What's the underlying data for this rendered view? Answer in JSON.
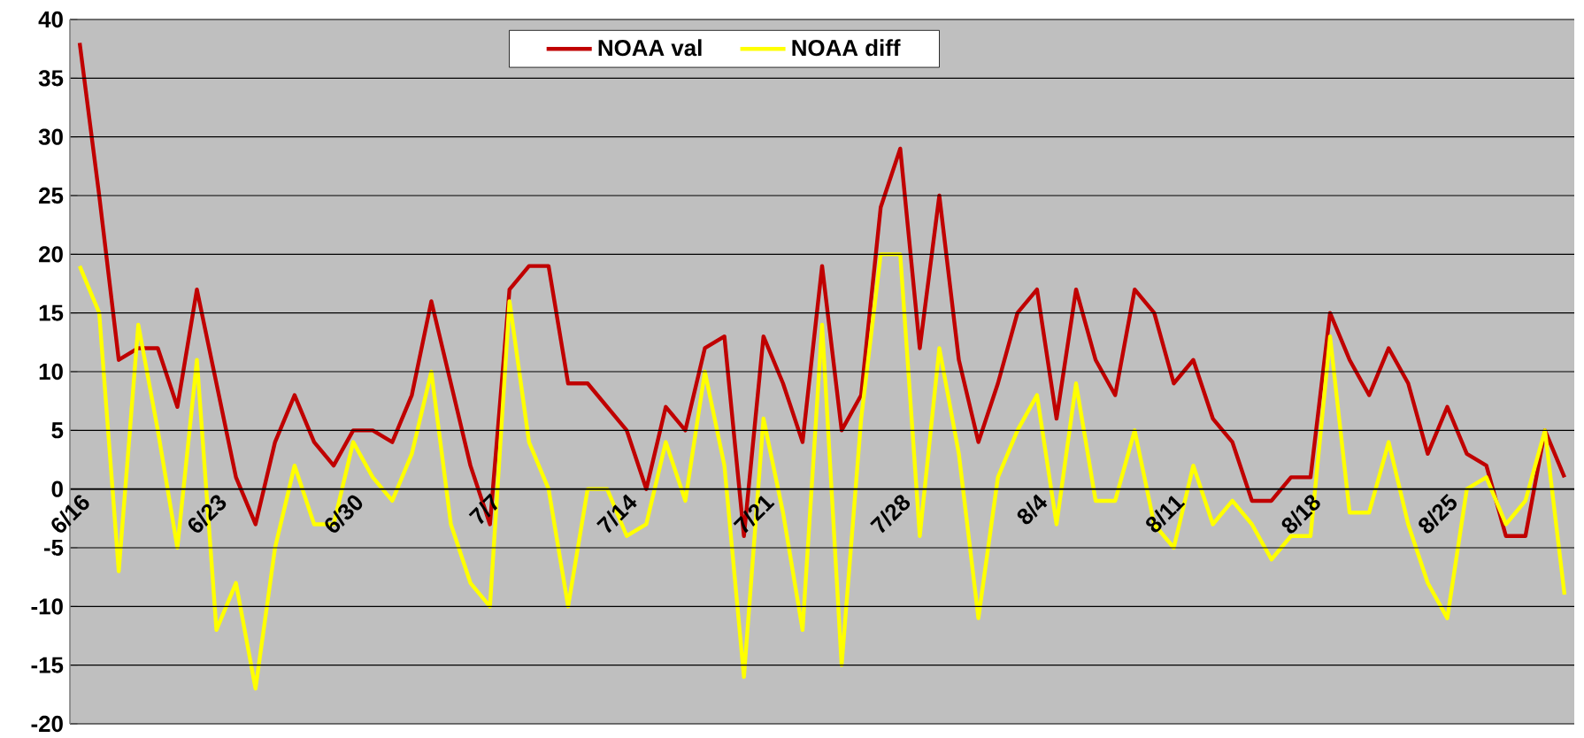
{
  "chart_data": {
    "type": "line",
    "categories": [
      "6/16",
      null,
      null,
      null,
      null,
      null,
      null,
      "6/23",
      null,
      null,
      null,
      null,
      null,
      null,
      "6/30",
      null,
      null,
      null,
      null,
      null,
      null,
      "7/7",
      null,
      null,
      null,
      null,
      null,
      null,
      "7/14",
      null,
      null,
      null,
      null,
      null,
      null,
      "7/21",
      null,
      null,
      null,
      null,
      null,
      null,
      "7/28",
      null,
      null,
      null,
      null,
      null,
      null,
      "8/4",
      null,
      null,
      null,
      null,
      null,
      null,
      "8/11",
      null,
      null,
      null,
      null,
      null,
      null,
      "8/18",
      null,
      null,
      null,
      null,
      null,
      null,
      "8/25",
      null,
      null,
      null,
      null,
      null,
      null
    ],
    "series": [
      {
        "name": "NOAA val",
        "color": "#c00000",
        "values": [
          38,
          25,
          11,
          12,
          12,
          7,
          17,
          9,
          1,
          -3,
          4,
          8,
          4,
          2,
          5,
          5,
          4,
          8,
          16,
          9,
          2,
          -3,
          17,
          19,
          19,
          9,
          9,
          7,
          5,
          0,
          7,
          5,
          12,
          13,
          -4,
          13,
          9,
          4,
          19,
          5,
          8,
          24,
          29,
          12,
          25,
          11,
          4,
          9,
          15,
          17,
          6,
          17,
          11,
          8,
          17,
          15,
          9,
          11,
          6,
          4,
          -1,
          -1,
          1,
          1,
          15,
          11,
          8,
          12,
          9,
          3,
          7,
          3,
          2,
          -4,
          -4,
          5,
          1
        ]
      },
      {
        "name": "NOAA diff",
        "color": "#ffff00",
        "values": [
          19,
          15,
          -7,
          14,
          5,
          -5,
          11,
          -12,
          -8,
          -17,
          -5,
          2,
          -3,
          -3,
          4,
          1,
          -1,
          3,
          10,
          -3,
          -8,
          -10,
          16,
          4,
          0,
          -10,
          0,
          0,
          -4,
          -3,
          4,
          -1,
          10,
          2,
          -16,
          6,
          -2,
          -12,
          14,
          -15,
          6,
          20,
          20,
          -4,
          12,
          3,
          -11,
          1,
          5,
          8,
          -3,
          9,
          -1,
          -1,
          5,
          -3,
          -5,
          2,
          -3,
          -1,
          -3,
          -6,
          -4,
          -4,
          13,
          -2,
          -2,
          4,
          -3,
          -8,
          -11,
          0,
          1,
          -3,
          -1,
          5,
          -9
        ]
      }
    ],
    "ylim": [
      -20,
      40
    ],
    "yticks": [
      -20,
      -15,
      -10,
      -5,
      0,
      5,
      10,
      15,
      20,
      25,
      30,
      35,
      40
    ],
    "grid": "y",
    "legend": "top"
  }
}
